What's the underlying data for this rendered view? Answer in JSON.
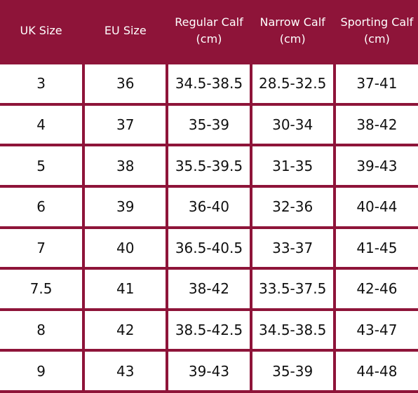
{
  "table": {
    "header": [
      "UK Size",
      "EU Size",
      "Regular Calf (cm)",
      "Narrow Calf (cm)",
      "Sporting Calf (cm)"
    ],
    "rows": [
      [
        "3",
        "36",
        "34.5-38.5",
        "28.5-32.5",
        "37-41"
      ],
      [
        "4",
        "37",
        "35-39",
        "30-34",
        "38-42"
      ],
      [
        "5",
        "38",
        "35.5-39.5",
        "31-35",
        "39-43"
      ],
      [
        "6",
        "39",
        "36-40",
        "32-36",
        "40-44"
      ],
      [
        "7",
        "40",
        "36.5-40.5",
        "33-37",
        "41-45"
      ],
      [
        "7.5",
        "41",
        "38-42",
        "33.5-37.5",
        "42-46"
      ],
      [
        "8",
        "42",
        "38.5-42.5",
        "34.5-38.5",
        "43-47"
      ],
      [
        "9",
        "43",
        "39-43",
        "35-39",
        "44-48"
      ]
    ]
  }
}
